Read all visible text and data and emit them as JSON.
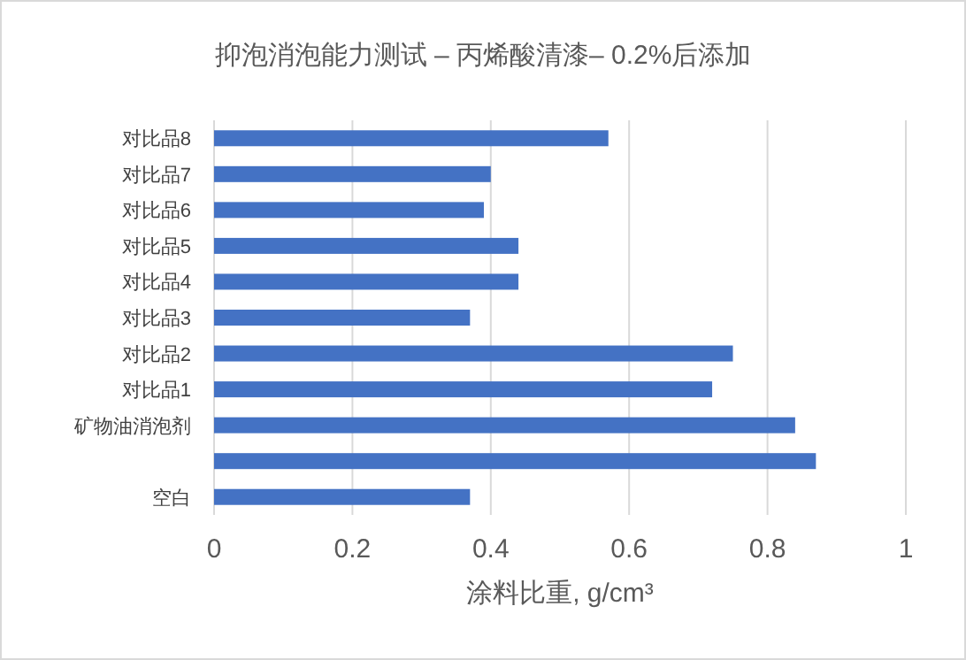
{
  "chart_data": {
    "type": "bar",
    "orientation": "horizontal",
    "title": "抑泡消泡能力测试 – 丙烯酸清漆– 0.2%后添加",
    "xlabel": "涂料比重, g/cm³",
    "categories": [
      "对比品8",
      "对比品7",
      "对比品6",
      "对比品5",
      "对比品4",
      "对比品3",
      "对比品2",
      "对比品1",
      "矿物油消泡剂",
      null,
      "空白"
    ],
    "values": [
      0.57,
      0.4,
      0.39,
      0.44,
      0.44,
      0.37,
      0.75,
      0.72,
      0.84,
      0.87,
      0.37
    ],
    "color": "#4472c4",
    "xlim": [
      0,
      1
    ],
    "xticks": [
      0,
      0.2,
      0.4,
      0.6,
      0.8,
      1
    ],
    "grid": "x"
  }
}
